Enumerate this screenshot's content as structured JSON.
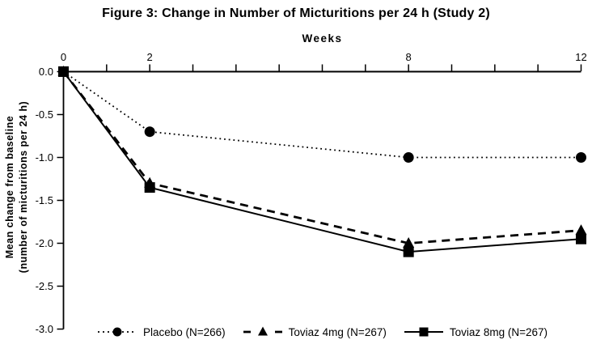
{
  "chart_data": {
    "type": "line",
    "title": "Figure 3: Change in Number of Micturitions per 24 h (Study 2)",
    "x_axis": {
      "label": "Weeks",
      "position": "top",
      "range": [
        0,
        12
      ],
      "minor_tick_interval": 1,
      "labeled_ticks": [
        {
          "value": 0,
          "label": "0"
        },
        {
          "value": 2,
          "label": "2"
        },
        {
          "value": 8,
          "label": "8"
        },
        {
          "value": 12,
          "label": "12"
        }
      ]
    },
    "y_axis": {
      "label_line1": "Mean change from baseline",
      "label_line2": "(number of micturitions per 24 h)",
      "range": [
        -3.0,
        0.0
      ],
      "ticks": [
        {
          "value": 0.0,
          "label": "0.0"
        },
        {
          "value": -0.5,
          "label": "-0.5"
        },
        {
          "value": -1.0,
          "label": "-1.0"
        },
        {
          "value": -1.5,
          "label": "-1.5"
        },
        {
          "value": -2.0,
          "label": "-2.0"
        },
        {
          "value": -2.5,
          "label": "-2.5"
        },
        {
          "value": -3.0,
          "label": "-3.0"
        }
      ]
    },
    "x": [
      0,
      2,
      8,
      12
    ],
    "series": [
      {
        "name": "Placebo (N=266)",
        "line": "dotted",
        "marker": "circle",
        "values": [
          0.0,
          -0.7,
          -1.0,
          -1.0
        ]
      },
      {
        "name": "Toviaz 4mg (N=267)",
        "line": "dashed",
        "marker": "triangle",
        "values": [
          0.0,
          -1.3,
          -2.0,
          -1.85
        ]
      },
      {
        "name": "Toviaz 8mg (N=267)",
        "line": "solid",
        "marker": "square",
        "values": [
          0.0,
          -1.35,
          -2.1,
          -1.95
        ]
      }
    ],
    "legend_position": "bottom",
    "grid": false,
    "colors": {
      "foreground": "#000000",
      "background": "#ffffff"
    }
  }
}
